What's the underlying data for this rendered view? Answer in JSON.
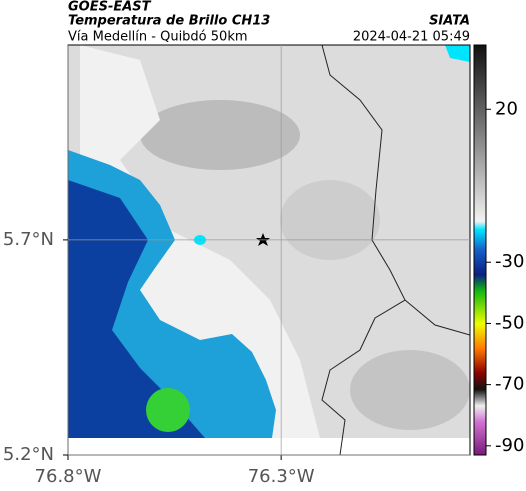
{
  "header": {
    "satellite": "GOES-EAST",
    "title": "Temperatura de Brillo CH13",
    "source": "SIATA",
    "subtitle": "Vía Medellín - Quibdó 50km",
    "datetime": "2024-04-21 05:49"
  },
  "map": {
    "xlim": [
      -76.8,
      -75.857
    ],
    "ylim": [
      5.2,
      6.153
    ],
    "xticks": [
      {
        "value": -76.8,
        "label": "76.8°W"
      },
      {
        "value": -76.3,
        "label": "76.3°W"
      }
    ],
    "yticks": [
      {
        "value": 5.2,
        "label": "5.2°N"
      },
      {
        "value": 5.7,
        "label": "5.7°N"
      }
    ]
  },
  "colorbar": {
    "lim": [
      -93,
      41
    ],
    "ticks": [
      20,
      -30,
      -50,
      -70,
      -90
    ]
  }
}
